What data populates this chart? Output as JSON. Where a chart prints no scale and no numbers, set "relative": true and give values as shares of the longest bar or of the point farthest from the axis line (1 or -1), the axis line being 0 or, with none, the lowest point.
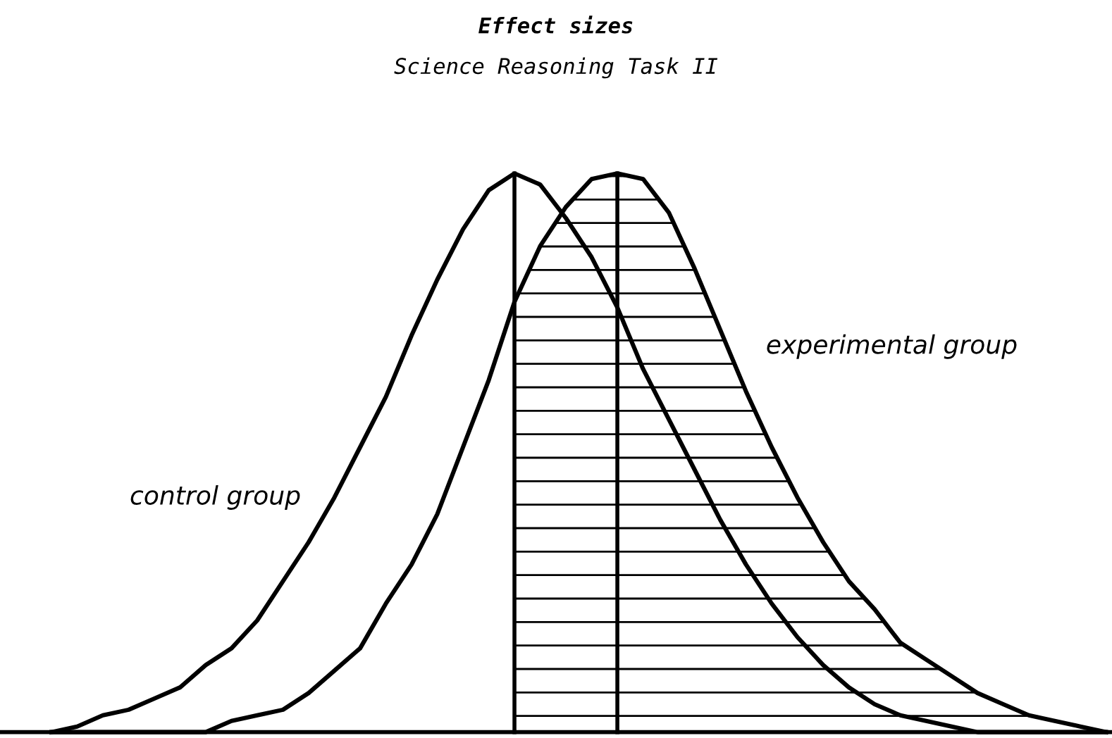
{
  "chart_data": {
    "type": "line",
    "title": "Effect sizes",
    "subtitle": "Science Reasoning Task II",
    "relative": true,
    "marker": "none",
    "line_style": "solid",
    "categories": [
      null,
      null,
      null,
      null,
      null,
      null,
      null,
      null,
      null,
      null,
      null,
      null,
      null,
      null,
      null,
      null,
      null,
      null,
      null,
      null,
      null,
      null,
      null,
      null,
      null,
      null,
      null,
      null,
      null,
      null,
      null,
      null,
      null,
      null,
      null,
      null,
      null,
      null,
      null,
      null,
      null,
      null
    ],
    "series": [
      {
        "name": "control group",
        "color": "#000000",
        "values": [
          0,
          0.01,
          0.03,
          0.04,
          0.06,
          0.08,
          0.12,
          0.15,
          0.2,
          0.27,
          0.34,
          0.42,
          0.51,
          0.6,
          0.71,
          0.81,
          0.9,
          0.97,
          1,
          0.98,
          0.92,
          0.85,
          0.76,
          0.65,
          0.56,
          0.47,
          0.38,
          0.3,
          0.23,
          0.17,
          0.12,
          0.08,
          0.05,
          0.03,
          0.02,
          0.01,
          0,
          0,
          0,
          0,
          0,
          0
        ]
      },
      {
        "name": "experimental group",
        "color": "#000000",
        "values": [
          0,
          0,
          0,
          0,
          0,
          0,
          0,
          0.02,
          0.03,
          0.04,
          0.07,
          0.11,
          0.15,
          0.23,
          0.3,
          0.39,
          0.51,
          0.63,
          0.77,
          0.87,
          0.94,
          0.99,
          1,
          0.99,
          0.93,
          0.83,
          0.72,
          0.61,
          0.51,
          0.42,
          0.34,
          0.27,
          0.22,
          0.16,
          0.13,
          0.1,
          0.07,
          0.05,
          0.03,
          0.02,
          0.01,
          0
        ]
      }
    ]
  }
}
